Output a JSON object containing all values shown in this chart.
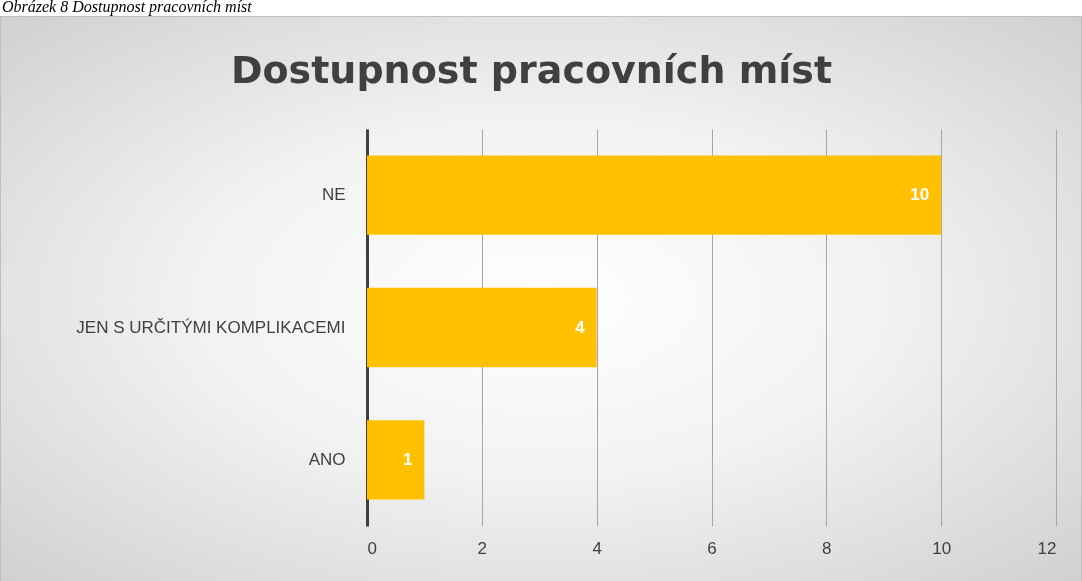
{
  "chart_data": {
    "type": "bar",
    "orientation": "horizontal",
    "title": "Dostupnost pracovních míst",
    "annotations": [
      "Obrázek 8 Dostupnost pracovních míst"
    ],
    "categories": [
      "NE",
      "JEN S URČITÝMI KOMPLIKACEMI",
      "ANO"
    ],
    "values": [
      10,
      4,
      1
    ],
    "color": "#ffc000",
    "xlim": [
      0,
      12
    ],
    "xticks": [
      0,
      2,
      4,
      6,
      8,
      10,
      12
    ],
    "grid": "x",
    "data_labels": true
  }
}
